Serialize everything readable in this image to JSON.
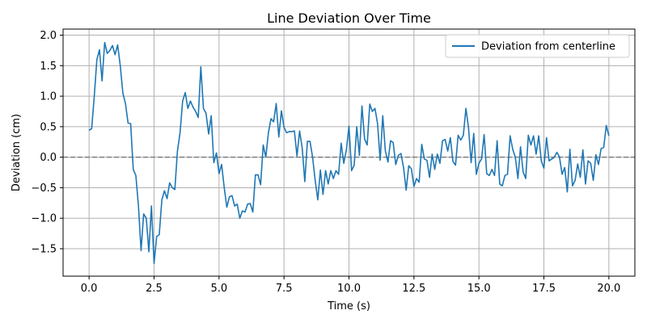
{
  "chart_data": {
    "type": "line",
    "title": "Line Deviation Over Time",
    "xlabel": "Time (s)",
    "ylabel": "Deviation (cm)",
    "xlim": [
      -1.0,
      21.0
    ],
    "ylim": [
      -1.95,
      2.1
    ],
    "xticks": [
      0.0,
      2.5,
      5.0,
      7.5,
      10.0,
      12.5,
      15.0,
      17.5,
      20.0
    ],
    "xtick_labels": [
      "0.0",
      "2.5",
      "5.0",
      "7.5",
      "10.0",
      "12.5",
      "15.0",
      "17.5",
      "20.0"
    ],
    "yticks": [
      -1.5,
      -1.0,
      -0.5,
      0.0,
      0.5,
      1.0,
      1.5,
      2.0
    ],
    "ytick_labels": [
      "−1.5",
      "−1.0",
      "−0.5",
      "0.0",
      "0.5",
      "1.0",
      "1.5",
      "2.0"
    ],
    "grid": true,
    "legend_position": "top-right",
    "reference_line": {
      "y": 0.0,
      "style": "dashed",
      "color": "#808080"
    },
    "series": [
      {
        "name": "Deviation from centerline",
        "color": "#1f77b4",
        "x": [
          0.0,
          0.1,
          0.2,
          0.3,
          0.4,
          0.5,
          0.6,
          0.7,
          0.8,
          0.9,
          1.0,
          1.1,
          1.2,
          1.3,
          1.4,
          1.5,
          1.6,
          1.7,
          1.8,
          1.9,
          2.0,
          2.1,
          2.2,
          2.3,
          2.4,
          2.5,
          2.6,
          2.7,
          2.8,
          2.9,
          3.0,
          3.1,
          3.2,
          3.3,
          3.4,
          3.5,
          3.6,
          3.7,
          3.8,
          3.9,
          4.0,
          4.1,
          4.2,
          4.3,
          4.4,
          4.5,
          4.6,
          4.7,
          4.8,
          4.9,
          5.0,
          5.1,
          5.2,
          5.3,
          5.4,
          5.5,
          5.6,
          5.7,
          5.8,
          5.9,
          6.0,
          6.1,
          6.2,
          6.3,
          6.4,
          6.5,
          6.6,
          6.7,
          6.8,
          6.9,
          7.0,
          7.1,
          7.2,
          7.3,
          7.4,
          7.5,
          7.6,
          7.7,
          7.8,
          7.9,
          8.0,
          8.1,
          8.2,
          8.3,
          8.4,
          8.5,
          8.6,
          8.7,
          8.8,
          8.9,
          9.0,
          9.1,
          9.2,
          9.3,
          9.4,
          9.5,
          9.6,
          9.7,
          9.8,
          9.9,
          10.0,
          10.1,
          10.2,
          10.3,
          10.4,
          10.5,
          10.6,
          10.7,
          10.8,
          10.9,
          11.0,
          11.1,
          11.2,
          11.3,
          11.4,
          11.5,
          11.6,
          11.7,
          11.8,
          11.9,
          12.0,
          12.1,
          12.2,
          12.3,
          12.4,
          12.5,
          12.6,
          12.7,
          12.8,
          12.9,
          13.0,
          13.1,
          13.2,
          13.3,
          13.4,
          13.5,
          13.6,
          13.7,
          13.8,
          13.9,
          14.0,
          14.1,
          14.2,
          14.3,
          14.4,
          14.5,
          14.6,
          14.7,
          14.8,
          14.9,
          15.0,
          15.1,
          15.2,
          15.3,
          15.4,
          15.5,
          15.6,
          15.7,
          15.8,
          15.9,
          16.0,
          16.1,
          16.2,
          16.3,
          16.4,
          16.5,
          16.6,
          16.7,
          16.8,
          16.9,
          17.0,
          17.1,
          17.2,
          17.3,
          17.4,
          17.5,
          17.6,
          17.7,
          17.8,
          17.9,
          18.0,
          18.1,
          18.2,
          18.3,
          18.4,
          18.5,
          18.6,
          18.7,
          18.8,
          18.9,
          19.0,
          19.1,
          19.2,
          19.3,
          19.4,
          19.5,
          19.6,
          19.7,
          19.8,
          19.9,
          20.0
        ],
        "y": [
          0.44,
          0.47,
          1.0,
          1.6,
          1.76,
          1.25,
          1.88,
          1.7,
          1.75,
          1.83,
          1.68,
          1.84,
          1.5,
          1.05,
          0.88,
          0.56,
          0.55,
          -0.2,
          -0.3,
          -0.8,
          -1.53,
          -0.93,
          -1.0,
          -1.55,
          -0.8,
          -1.74,
          -1.3,
          -1.27,
          -0.7,
          -0.55,
          -0.68,
          -0.42,
          -0.5,
          -0.53,
          0.1,
          0.4,
          0.92,
          1.06,
          0.8,
          0.92,
          0.82,
          0.75,
          0.65,
          1.48,
          0.8,
          0.72,
          0.38,
          0.68,
          -0.09,
          0.07,
          -0.27,
          -0.12,
          -0.5,
          -0.82,
          -0.65,
          -0.63,
          -0.8,
          -0.77,
          -1.0,
          -0.88,
          -0.9,
          -0.77,
          -0.76,
          -0.9,
          -0.29,
          -0.29,
          -0.45,
          0.2,
          0.0,
          0.4,
          0.63,
          0.58,
          0.88,
          0.33,
          0.76,
          0.49,
          0.4,
          0.42,
          0.42,
          0.43,
          0.02,
          0.43,
          0.15,
          -0.4,
          0.26,
          0.26,
          0.0,
          -0.38,
          -0.7,
          -0.21,
          -0.61,
          -0.22,
          -0.44,
          -0.22,
          -0.35,
          -0.22,
          -0.28,
          0.23,
          -0.1,
          0.12,
          0.51,
          -0.22,
          -0.13,
          0.5,
          0.03,
          0.84,
          0.3,
          0.2,
          0.87,
          0.75,
          0.8,
          0.55,
          -0.05,
          0.68,
          0.1,
          -0.08,
          0.27,
          0.24,
          -0.12,
          0.03,
          0.06,
          -0.17,
          -0.54,
          -0.14,
          -0.19,
          -0.48,
          -0.35,
          -0.41,
          0.21,
          -0.03,
          -0.05,
          -0.33,
          0.05,
          -0.2,
          0.05,
          -0.1,
          0.27,
          0.29,
          0.1,
          0.32,
          -0.07,
          -0.13,
          0.36,
          0.28,
          0.36,
          0.8,
          0.48,
          -0.09,
          0.39,
          -0.28,
          -0.1,
          -0.03,
          0.37,
          -0.27,
          -0.3,
          -0.2,
          -0.3,
          0.27,
          -0.44,
          -0.47,
          -0.3,
          -0.28,
          0.35,
          0.13,
          0.0,
          -0.35,
          0.17,
          -0.24,
          -0.35,
          0.36,
          0.2,
          0.35,
          0.05,
          0.35,
          -0.06,
          -0.18,
          0.32,
          -0.06,
          -0.03,
          0.0,
          0.08,
          0.0,
          -0.28,
          -0.17,
          -0.57,
          0.13,
          -0.47,
          -0.38,
          -0.11,
          -0.33,
          0.12,
          -0.44,
          -0.06,
          -0.1,
          -0.38,
          0.04,
          -0.12,
          0.14,
          0.16,
          0.52,
          0.35
        ]
      }
    ]
  }
}
